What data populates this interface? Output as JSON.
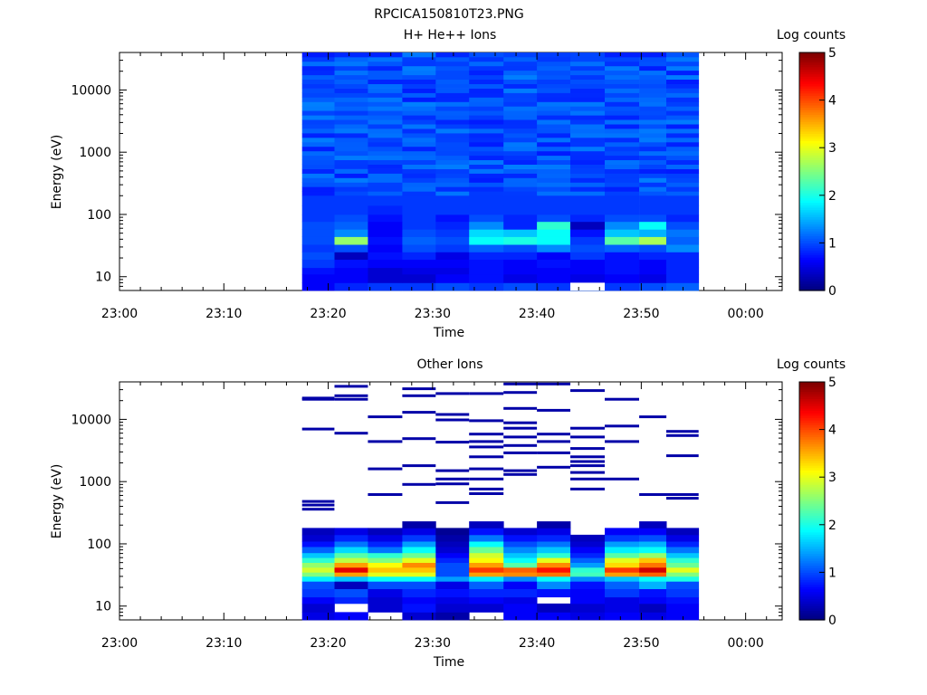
{
  "figure_title": "RPCICA150810T23.PNG",
  "chart_data": [
    {
      "type": "heatmap",
      "title": "H+ He++ Ions",
      "xlabel": "Time",
      "ylabel": "Energy (eV)",
      "colorbar_label": "Log counts",
      "x_tick_labels": [
        "23:00",
        "23:10",
        "23:20",
        "23:30",
        "23:40",
        "23:50",
        "00:00"
      ],
      "y_tick_labels": [
        "10",
        "100",
        "1000",
        "10000"
      ],
      "y_scale": "log",
      "y_range_eV": [
        6,
        40000
      ],
      "x_range_min": [
        0,
        63.5
      ],
      "data_x_range_min": [
        17.5,
        55.5
      ],
      "colorbar_ticks": [
        "0",
        "1",
        "2",
        "3",
        "4",
        "5"
      ],
      "colorbar_range": [
        0,
        5
      ],
      "column_starts_min": [
        17.5,
        20.6,
        23.8,
        27.1,
        30.3,
        33.5,
        36.8,
        40.0,
        43.2,
        46.5,
        49.8,
        52.4
      ],
      "column_ends_min": [
        20.6,
        23.8,
        27.1,
        30.3,
        33.5,
        36.8,
        40.0,
        43.2,
        46.5,
        49.8,
        52.4,
        55.5
      ],
      "energy_band_edges_eV": [
        6,
        8,
        11,
        14,
        19,
        25,
        33,
        44,
        58,
        77,
        100,
        140,
        200
      ],
      "low_energy_log_counts": [
        [
          0.6,
          0.8,
          0.9,
          0.9,
          1.0,
          0.9,
          1.0,
          0.9,
          1.0,
          0.9,
          1.0,
          1.1
        ],
        [
          0.6,
          0.6,
          0.4,
          0.4,
          0.6,
          0.7,
          0.5,
          0.6,
          0.5,
          0.6,
          0.5,
          0.8
        ],
        [
          0.7,
          0.6,
          0.4,
          0.5,
          0.5,
          0.7,
          0.6,
          0.6,
          0.6,
          0.7,
          0.6,
          0.8
        ],
        [
          0.9,
          0.7,
          0.6,
          0.6,
          0.6,
          0.7,
          0.6,
          0.7,
          0.6,
          0.7,
          0.6,
          0.8
        ],
        [
          1.0,
          0.3,
          0.7,
          0.8,
          0.5,
          0.8,
          0.8,
          0.6,
          0.9,
          0.7,
          0.8,
          0.8
        ],
        [
          0.9,
          1.0,
          0.6,
          1.0,
          0.9,
          1.1,
          1.0,
          1.3,
          1.0,
          1.1,
          1.0,
          1.3
        ],
        [
          1.0,
          2.6,
          0.7,
          1.1,
          1.0,
          1.9,
          2.0,
          1.9,
          0.9,
          2.3,
          2.7,
          1.1
        ],
        [
          1.0,
          1.3,
          0.6,
          1.0,
          0.9,
          1.7,
          1.6,
          1.9,
          0.7,
          1.6,
          1.5,
          1.2
        ],
        [
          1.0,
          1.1,
          0.6,
          0.9,
          0.8,
          1.3,
          0.8,
          2.1,
          0.3,
          1.3,
          1.9,
          1.0
        ],
        [
          0.9,
          1.0,
          0.7,
          0.9,
          0.7,
          1.0,
          0.8,
          1.0,
          0.8,
          1.0,
          1.0,
          0.8
        ],
        [
          0.9,
          0.9,
          0.8,
          0.9,
          0.9,
          0.9,
          0.9,
          0.9,
          0.9,
          0.9,
          0.9,
          0.9
        ],
        [
          0.9,
          0.9,
          0.9,
          0.9,
          0.9,
          0.9,
          0.9,
          0.9,
          0.9,
          0.9,
          0.9,
          0.9
        ]
      ],
      "background_log_counts": [
        0.75,
        1.25
      ],
      "empty_cells": [
        [
          8,
          0
        ]
      ]
    },
    {
      "type": "heatmap",
      "title": "Other Ions",
      "xlabel": "Time",
      "ylabel": "Energy (eV)",
      "colorbar_label": "Log counts",
      "x_tick_labels": [
        "23:00",
        "23:10",
        "23:20",
        "23:30",
        "23:40",
        "23:50",
        "00:00"
      ],
      "y_tick_labels": [
        "10",
        "100",
        "1000",
        "10000"
      ],
      "y_scale": "log",
      "y_range_eV": [
        6,
        40000
      ],
      "x_range_min": [
        0,
        63.5
      ],
      "data_x_range_min": [
        17.5,
        55.5
      ],
      "colorbar_ticks": [
        "0",
        "1",
        "2",
        "3",
        "4",
        "5"
      ],
      "colorbar_range": [
        0,
        5
      ],
      "column_starts_min": [
        17.5,
        20.6,
        23.8,
        27.1,
        30.3,
        33.5,
        36.8,
        40.0,
        43.2,
        46.5,
        49.8,
        52.4
      ],
      "column_ends_min": [
        20.6,
        23.8,
        27.1,
        30.3,
        33.5,
        36.8,
        40.0,
        43.2,
        46.5,
        49.8,
        52.4,
        55.5
      ],
      "energy_band_edges_eV": [
        6,
        8,
        11,
        14,
        19,
        25,
        30,
        35,
        42,
        50,
        60,
        72,
        90,
        110,
        140,
        180,
        230,
        300
      ],
      "low_energy_log_counts": [
        [
          0.5,
          0.6,
          null,
          0.4,
          0.2,
          null,
          0.6,
          0.6,
          0.5,
          0.6,
          0.5,
          0.6
        ],
        [
          0.4,
          null,
          0.4,
          0.7,
          0.4,
          0.4,
          0.6,
          0.3,
          0.4,
          0.5,
          0.3,
          0.6
        ],
        [
          0.6,
          0.8,
          0.4,
          0.6,
          0.5,
          0.6,
          0.5,
          null,
          0.6,
          0.5,
          0.6,
          0.7
        ],
        [
          0.9,
          1.0,
          0.5,
          0.8,
          0.7,
          0.8,
          0.8,
          0.7,
          0.6,
          0.9,
          0.7,
          0.9
        ],
        [
          1.0,
          0.3,
          1.0,
          1.0,
          0.5,
          1.1,
          0.6,
          1.3,
          0.7,
          1.1,
          1.5,
          1.0
        ],
        [
          1.8,
          1.6,
          1.9,
          1.9,
          1.4,
          1.8,
          1.3,
          1.9,
          1.3,
          1.6,
          1.9,
          2.0
        ],
        [
          2.5,
          3.6,
          3.0,
          3.0,
          1.0,
          3.6,
          3.7,
          3.8,
          2.2,
          3.6,
          3.9,
          2.5
        ],
        [
          2.9,
          4.5,
          3.4,
          3.4,
          1.0,
          4.1,
          3.9,
          4.3,
          2.1,
          4.1,
          4.6,
          3.0
        ],
        [
          2.6,
          3.6,
          3.1,
          3.7,
          1.0,
          3.6,
          2.3,
          3.7,
          1.4,
          3.3,
          3.8,
          2.4
        ],
        [
          2.1,
          2.8,
          2.5,
          3.0,
          0.8,
          3.1,
          1.9,
          3.0,
          1.1,
          3.0,
          3.4,
          2.1
        ],
        [
          1.6,
          2.3,
          2.1,
          2.4,
          0.6,
          2.9,
          1.6,
          2.1,
          0.8,
          2.3,
          2.6,
          1.6
        ],
        [
          1.1,
          1.7,
          1.2,
          1.9,
          0.4,
          2.4,
          1.3,
          1.6,
          0.6,
          1.8,
          1.9,
          1.2
        ],
        [
          0.7,
          1.2,
          0.8,
          1.4,
          0.3,
          1.9,
          1.0,
          1.2,
          0.4,
          1.4,
          1.5,
          0.8
        ],
        [
          0.4,
          0.8,
          0.5,
          0.9,
          0.2,
          1.2,
          0.7,
          0.8,
          0.3,
          0.9,
          1.0,
          0.5
        ],
        [
          0.3,
          0.5,
          0.3,
          0.5,
          0.1,
          0.7,
          0.4,
          0.5,
          null,
          0.6,
          0.6,
          0.3
        ],
        [
          null,
          null,
          null,
          0.2,
          null,
          0.3,
          null,
          0.2,
          null,
          null,
          0.3,
          null
        ]
      ],
      "sparse_high_energy_hits_eV": [
        [
          480,
          420,
          360,
          22000,
          21000,
          7000
        ],
        [
          34000,
          24000,
          21000,
          6000
        ],
        [
          11000,
          4400,
          1600,
          620
        ],
        [
          31000,
          24000,
          13000,
          4900,
          1800,
          900
        ],
        [
          26000,
          12000,
          9800,
          4300,
          1500,
          1100,
          920,
          460
        ],
        [
          26000,
          9500,
          5800,
          4400,
          3600,
          2500,
          1600,
          1100,
          760,
          640
        ],
        [
          37000,
          27000,
          15000,
          8800,
          7200,
          5200,
          3800,
          2900,
          1500,
          1300
        ],
        [
          37000,
          14000,
          5800,
          4400,
          2900,
          1700
        ],
        [
          29000,
          7200,
          5200,
          3400,
          2500,
          2100,
          1800,
          1400,
          1100,
          760
        ],
        [
          21000,
          7800,
          4400,
          1100
        ],
        [
          11000,
          620
        ],
        [
          6400,
          5500,
          2600,
          620,
          540
        ]
      ]
    }
  ]
}
